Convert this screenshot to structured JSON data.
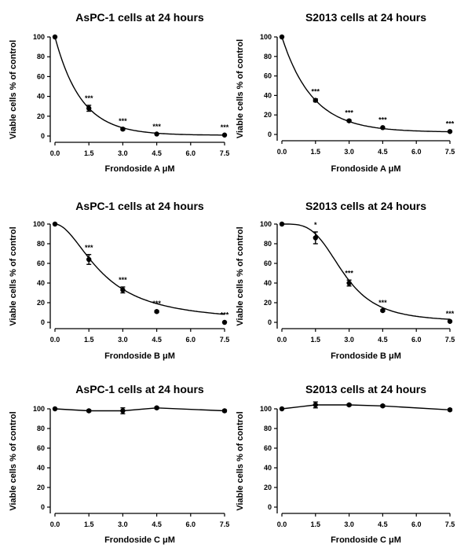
{
  "chart_data": [
    {
      "type": "scatter",
      "title": "AsPC-1 cells at 24 hours",
      "xlabel": "Frondoside A μM",
      "ylabel": "Viable cells % of control",
      "x_ticks": [
        "0.0",
        "1.5",
        "3.0",
        "4.5",
        "6.0",
        "7.5"
      ],
      "y_ticks": [
        "0",
        "20",
        "40",
        "60",
        "80",
        "100"
      ],
      "xlim": [
        0,
        7.5
      ],
      "ylim": [
        0,
        100
      ],
      "fit": "curve",
      "points": [
        {
          "x": 0,
          "y": 100,
          "err": 0,
          "sig": ""
        },
        {
          "x": 1.5,
          "y": 28,
          "err": 3,
          "sig": "***"
        },
        {
          "x": 3.0,
          "y": 7,
          "err": 1,
          "sig": "***"
        },
        {
          "x": 4.5,
          "y": 2,
          "err": 0.5,
          "sig": "***"
        },
        {
          "x": 7.5,
          "y": 1,
          "err": 0.5,
          "sig": "***"
        }
      ]
    },
    {
      "type": "scatter",
      "title": "S2013 cells at 24 hours",
      "xlabel": "Frondoside A μM",
      "ylabel": "Viable cells % of control",
      "x_ticks": [
        "0.0",
        "1.5",
        "3.0",
        "4.5",
        "6.0",
        "7.5"
      ],
      "y_ticks": [
        "0",
        "20",
        "40",
        "60",
        "80",
        "100"
      ],
      "xlim": [
        0,
        7.5
      ],
      "ylim": [
        0,
        100
      ],
      "fit": "curve",
      "points": [
        {
          "x": 0,
          "y": 100,
          "err": 0,
          "sig": ""
        },
        {
          "x": 1.5,
          "y": 35,
          "err": 1.5,
          "sig": "***"
        },
        {
          "x": 3.0,
          "y": 14,
          "err": 1,
          "sig": "***"
        },
        {
          "x": 4.5,
          "y": 7,
          "err": 0.5,
          "sig": "***"
        },
        {
          "x": 7.5,
          "y": 3,
          "err": 0.5,
          "sig": "***"
        }
      ]
    },
    {
      "type": "scatter",
      "title": "AsPC-1 cells at 24 hours",
      "xlabel": "Frondoside B μM",
      "ylabel": "Viable cells % of control",
      "x_ticks": [
        "0.0",
        "1.5",
        "3.0",
        "4.5",
        "6.0",
        "7.5"
      ],
      "y_ticks": [
        "0",
        "20",
        "40",
        "60",
        "80",
        "100"
      ],
      "xlim": [
        0,
        7.5
      ],
      "ylim": [
        0,
        100
      ],
      "fit": "curve",
      "points": [
        {
          "x": 0,
          "y": 100,
          "err": 0,
          "sig": ""
        },
        {
          "x": 1.5,
          "y": 64,
          "err": 5,
          "sig": "***"
        },
        {
          "x": 3.0,
          "y": 33,
          "err": 3,
          "sig": "***"
        },
        {
          "x": 4.5,
          "y": 11,
          "err": 1,
          "sig": "***"
        },
        {
          "x": 7.5,
          "y": 0,
          "err": 0.5,
          "sig": "***"
        }
      ]
    },
    {
      "type": "scatter",
      "title": "S2013 cells at 24 hours",
      "xlabel": "Frondoside B μM",
      "ylabel": "Viable cells % of control",
      "x_ticks": [
        "0.0",
        "1.5",
        "3.0",
        "4.5",
        "6.0",
        "7.5"
      ],
      "y_ticks": [
        "0",
        "20",
        "40",
        "60",
        "80",
        "100"
      ],
      "xlim": [
        0,
        7.5
      ],
      "ylim": [
        0,
        100
      ],
      "fit": "curve",
      "points": [
        {
          "x": 0,
          "y": 100,
          "err": 0,
          "sig": ""
        },
        {
          "x": 1.5,
          "y": 86,
          "err": 6,
          "sig": "*"
        },
        {
          "x": 3.0,
          "y": 40,
          "err": 3,
          "sig": "***"
        },
        {
          "x": 4.5,
          "y": 12,
          "err": 1,
          "sig": "***"
        },
        {
          "x": 7.5,
          "y": 1,
          "err": 0.5,
          "sig": "***"
        }
      ]
    },
    {
      "type": "line",
      "title": "AsPC-1 cells at 24 hours",
      "xlabel": "Frondoside C μM",
      "ylabel": "Viable cells % of control",
      "x_ticks": [
        "0.0",
        "1.5",
        "3.0",
        "4.5",
        "6.0",
        "7.5"
      ],
      "y_ticks": [
        "0",
        "20",
        "40",
        "60",
        "80",
        "100"
      ],
      "xlim": [
        0,
        7.5
      ],
      "ylim": [
        0,
        100
      ],
      "fit": "line",
      "points": [
        {
          "x": 0,
          "y": 100,
          "err": 0,
          "sig": ""
        },
        {
          "x": 1.5,
          "y": 98,
          "err": 1,
          "sig": ""
        },
        {
          "x": 3.0,
          "y": 98,
          "err": 3,
          "sig": ""
        },
        {
          "x": 4.5,
          "y": 101,
          "err": 1,
          "sig": ""
        },
        {
          "x": 7.5,
          "y": 98,
          "err": 1,
          "sig": ""
        }
      ]
    },
    {
      "type": "line",
      "title": "S2013 cells at 24 hours",
      "xlabel": "Frondoside C μM",
      "ylabel": "Viable cells % of control",
      "x_ticks": [
        "0.0",
        "1.5",
        "3.0",
        "4.5",
        "6.0",
        "7.5"
      ],
      "y_ticks": [
        "0",
        "20",
        "40",
        "60",
        "80",
        "100"
      ],
      "xlim": [
        0,
        7.5
      ],
      "ylim": [
        0,
        100
      ],
      "fit": "line",
      "points": [
        {
          "x": 0,
          "y": 100,
          "err": 0,
          "sig": ""
        },
        {
          "x": 1.5,
          "y": 104,
          "err": 3,
          "sig": ""
        },
        {
          "x": 3.0,
          "y": 104,
          "err": 1,
          "sig": ""
        },
        {
          "x": 4.5,
          "y": 103,
          "err": 1,
          "sig": ""
        },
        {
          "x": 7.5,
          "y": 99,
          "err": 1,
          "sig": ""
        }
      ]
    }
  ]
}
